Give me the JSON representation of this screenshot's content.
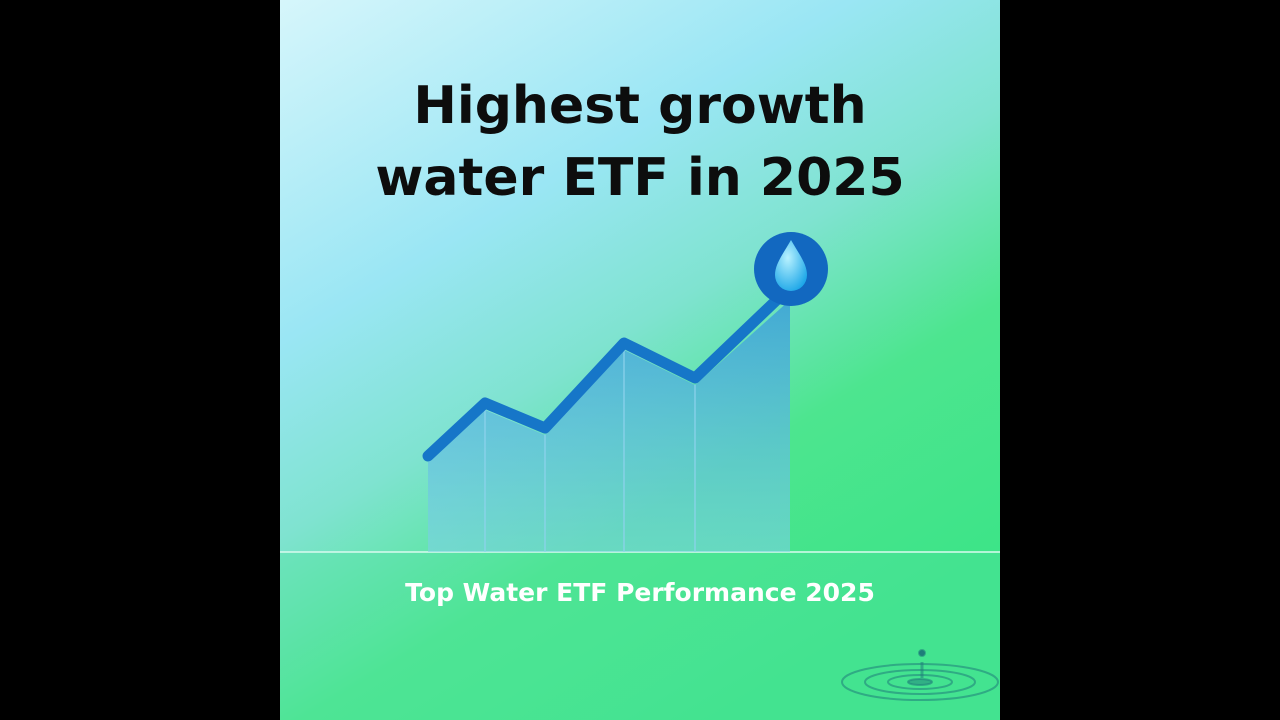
{
  "title": {
    "lines": [
      "Highest growth",
      "water ETF in 2025"
    ]
  },
  "caption": "Top Water ETF Performance 2025"
}
